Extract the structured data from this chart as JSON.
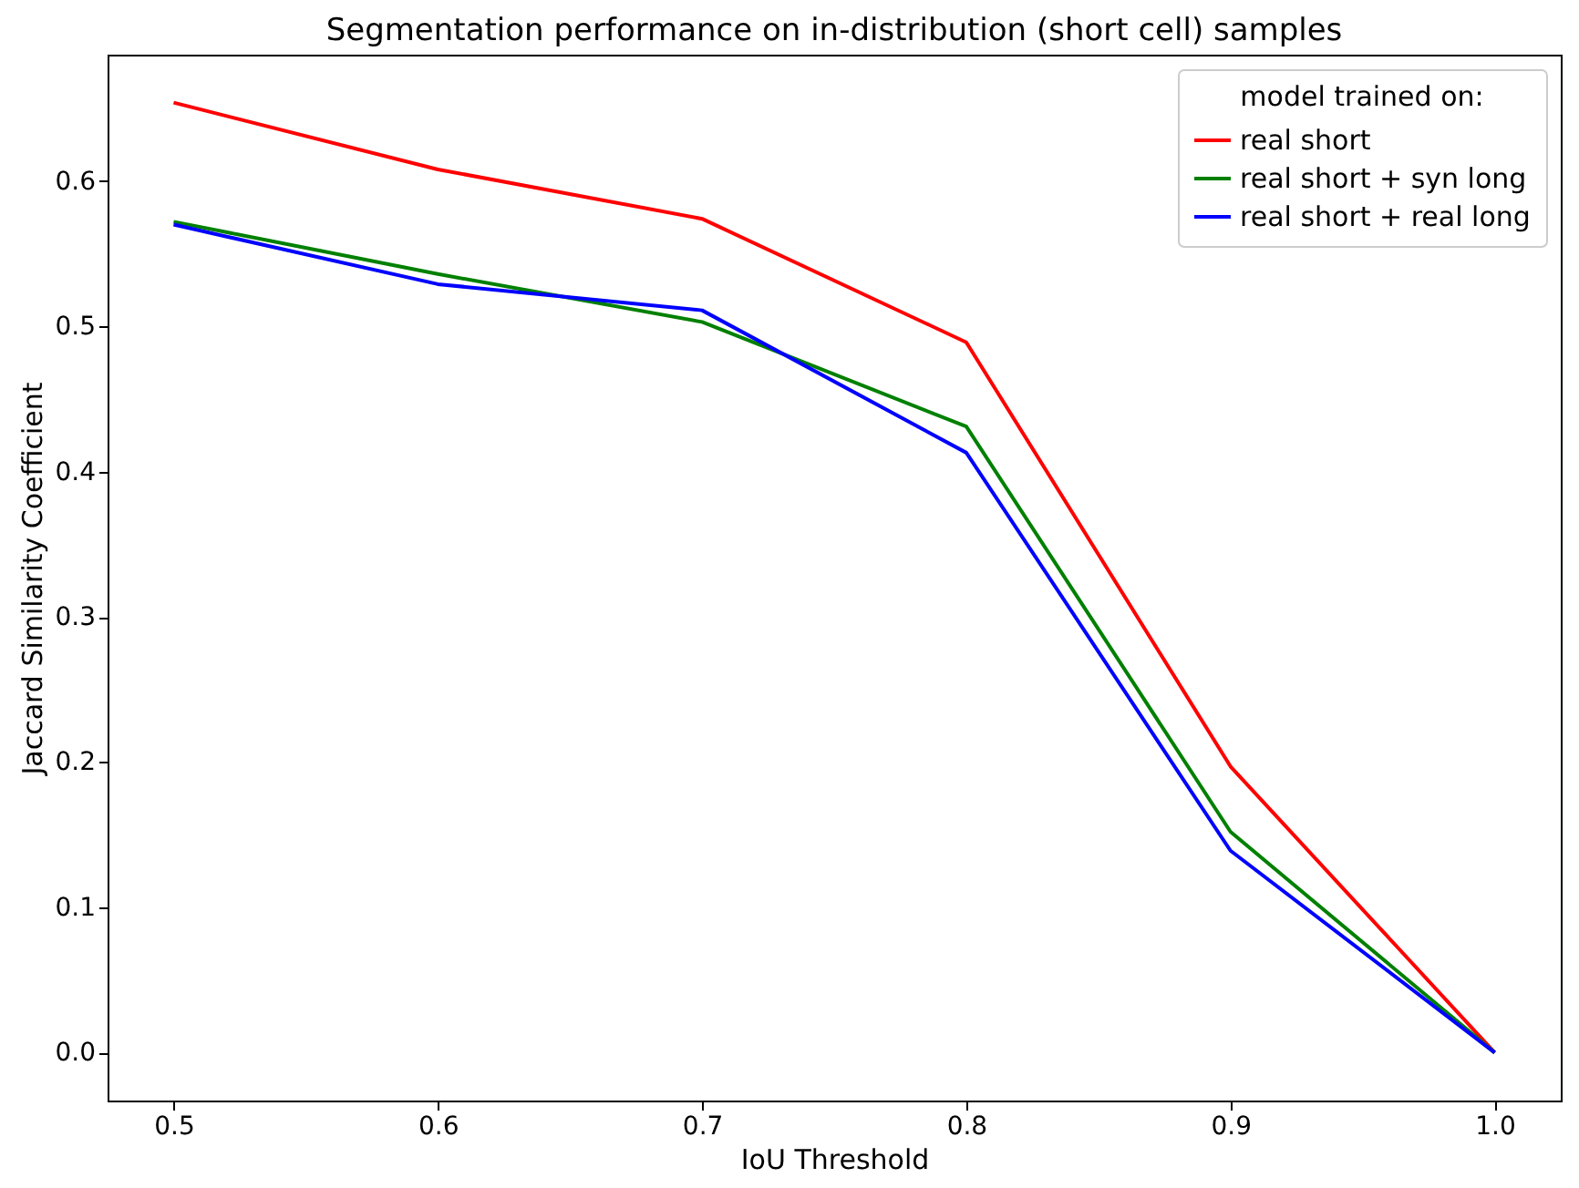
{
  "chart_data": {
    "type": "line",
    "title": "Segmentation performance on in-distribution (short cell) samples",
    "xlabel": "IoU Threshold",
    "ylabel": "Jaccard Similarity Coefficient",
    "legend_title": "model trained on:",
    "x": [
      0.5,
      0.6,
      0.7,
      0.8,
      0.9,
      1.0
    ],
    "series": [
      {
        "name": "real short",
        "color": "#ff0000",
        "values": [
          0.654,
          0.608,
          0.574,
          0.489,
          0.197,
          0.0
        ]
      },
      {
        "name": "real short + syn long",
        "color": "#008000",
        "values": [
          0.572,
          0.536,
          0.503,
          0.431,
          0.152,
          0.0
        ]
      },
      {
        "name": "real short + real long",
        "color": "#0000ff",
        "values": [
          0.57,
          0.529,
          0.511,
          0.413,
          0.139,
          0.0
        ]
      }
    ],
    "xlim": [
      0.475,
      1.025
    ],
    "ylim": [
      -0.033,
      0.687
    ],
    "xticks": [
      0.5,
      0.6,
      0.7,
      0.8,
      0.9,
      {
        "value": 1.0,
        "label": "1.0"
      }
    ],
    "yticks": [
      {
        "value": 0.0,
        "label": "0.0"
      },
      0.1,
      0.2,
      0.3,
      0.4,
      0.5,
      0.6
    ],
    "grid": false,
    "legend": "top right",
    "marker": "none",
    "line_style": "solid"
  }
}
